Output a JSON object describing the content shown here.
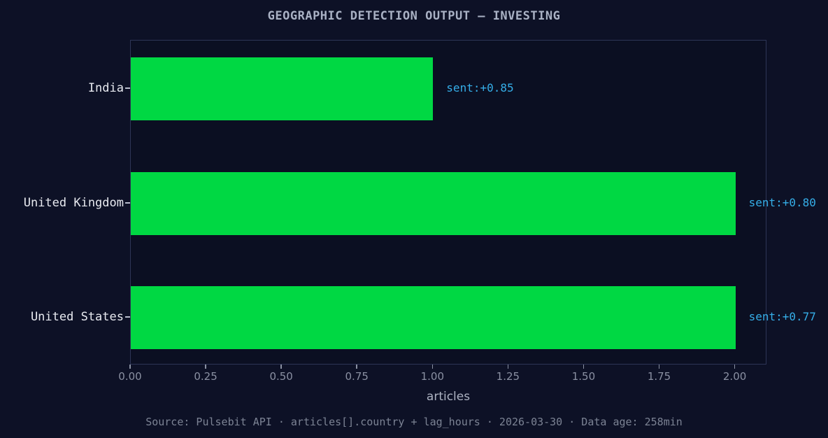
{
  "chart_data": {
    "type": "bar",
    "orientation": "horizontal",
    "title": "GEOGRAPHIC DETECTION OUTPUT — INVESTING",
    "categories": [
      "India",
      "United Kingdom",
      "United States"
    ],
    "values": [
      1.0,
      2.0,
      2.0
    ],
    "annotations": [
      "sent:+0.85",
      "sent:+0.80",
      "sent:+0.77"
    ],
    "sentiments": [
      0.85,
      0.8,
      0.77
    ],
    "xlabel": "articles",
    "ylabel": "",
    "xticks": [
      0.0,
      0.25,
      0.5,
      0.75,
      1.0,
      1.25,
      1.5,
      1.75,
      2.0
    ],
    "xtick_labels": [
      "0.00",
      "0.25",
      "0.50",
      "0.75",
      "1.00",
      "1.25",
      "1.50",
      "1.75",
      "2.00"
    ],
    "xlim": [
      0,
      2.105
    ],
    "grid": false,
    "legend": false,
    "bar_color": "#00d843",
    "annotation_color": "#35aee8",
    "background_color": "#0d1126"
  },
  "footer": {
    "text": "Source: Pulsebit API · articles[].country + lag_hours · 2026-03-30 · Data age: 258min"
  }
}
